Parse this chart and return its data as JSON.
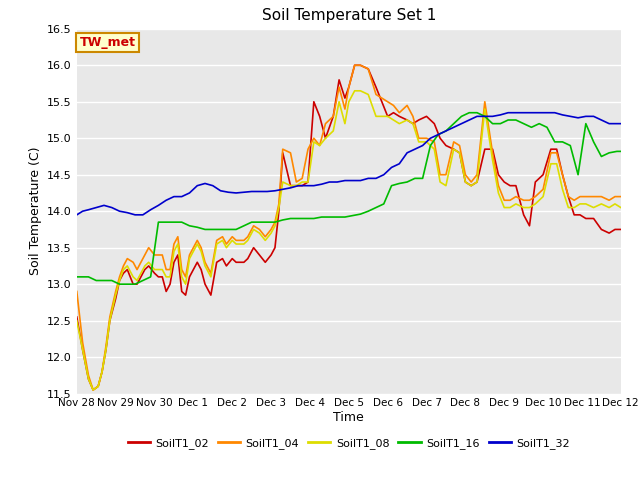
{
  "title": "Soil Temperature Set 1",
  "xlabel": "Time",
  "ylabel": "Soil Temperature (C)",
  "ylim": [
    11.5,
    16.5
  ],
  "fig_bg_color": "#ffffff",
  "plot_bg_color": "#e8e8e8",
  "grid_color": "#ffffff",
  "annotation_text": "TW_met",
  "annotation_bg": "#ffffcc",
  "annotation_border": "#cc8800",
  "annotation_text_color": "#cc0000",
  "series": {
    "SoilT1_02": {
      "color": "#cc0000",
      "x": [
        0,
        0.15,
        0.3,
        0.42,
        0.55,
        0.65,
        0.75,
        0.85,
        1.0,
        1.1,
        1.2,
        1.3,
        1.45,
        1.55,
        1.65,
        1.75,
        1.85,
        2.0,
        2.1,
        2.2,
        2.3,
        2.4,
        2.5,
        2.6,
        2.7,
        2.8,
        2.9,
        3.0,
        3.1,
        3.2,
        3.3,
        3.45,
        3.6,
        3.75,
        3.85,
        4.0,
        4.1,
        4.2,
        4.3,
        4.4,
        4.55,
        4.7,
        4.85,
        5.0,
        5.1,
        5.2,
        5.3,
        5.5,
        5.65,
        5.8,
        5.95,
        6.1,
        6.25,
        6.4,
        6.6,
        6.75,
        6.9,
        7.0,
        7.15,
        7.3,
        7.5,
        7.7,
        7.85,
        8.0,
        8.15,
        8.3,
        8.5,
        8.65,
        8.8,
        9.0,
        9.2,
        9.35,
        9.5,
        9.7,
        9.85,
        10.0,
        10.15,
        10.3,
        10.5,
        10.7,
        10.85,
        11.0,
        11.15,
        11.3,
        11.5,
        11.65,
        11.8,
        12.0,
        12.2,
        12.35,
        12.5,
        12.65,
        12.8,
        12.95,
        13.1,
        13.3,
        13.5,
        13.7,
        13.85,
        14.0
      ],
      "y": [
        12.55,
        12.1,
        11.7,
        11.55,
        11.6,
        11.8,
        12.1,
        12.5,
        12.8,
        13.05,
        13.15,
        13.2,
        13.0,
        13.0,
        13.1,
        13.2,
        13.25,
        13.15,
        13.1,
        13.1,
        12.9,
        13.0,
        13.3,
        13.4,
        12.9,
        12.85,
        13.1,
        13.2,
        13.3,
        13.2,
        13.0,
        12.85,
        13.3,
        13.35,
        13.25,
        13.35,
        13.3,
        13.3,
        13.3,
        13.35,
        13.5,
        13.4,
        13.3,
        13.4,
        13.5,
        14.0,
        14.8,
        14.35,
        14.35,
        14.35,
        14.4,
        15.5,
        15.3,
        15.0,
        15.3,
        15.8,
        15.55,
        15.7,
        16.0,
        16.0,
        15.95,
        15.7,
        15.5,
        15.3,
        15.35,
        15.3,
        15.25,
        15.2,
        15.25,
        15.3,
        15.2,
        15.0,
        14.9,
        14.85,
        14.8,
        14.4,
        14.35,
        14.4,
        14.85,
        14.85,
        14.5,
        14.4,
        14.35,
        14.35,
        13.95,
        13.8,
        14.4,
        14.5,
        14.85,
        14.85,
        14.5,
        14.2,
        13.95,
        13.95,
        13.9,
        13.9,
        13.75,
        13.7,
        13.75,
        13.75
      ]
    },
    "SoilT1_04": {
      "color": "#ff8800",
      "x": [
        0,
        0.15,
        0.3,
        0.42,
        0.55,
        0.65,
        0.75,
        0.85,
        1.0,
        1.1,
        1.2,
        1.3,
        1.45,
        1.55,
        1.65,
        1.75,
        1.85,
        2.0,
        2.1,
        2.2,
        2.3,
        2.4,
        2.5,
        2.6,
        2.7,
        2.8,
        2.9,
        3.0,
        3.1,
        3.2,
        3.3,
        3.45,
        3.6,
        3.75,
        3.85,
        4.0,
        4.1,
        4.2,
        4.3,
        4.4,
        4.55,
        4.7,
        4.85,
        5.0,
        5.1,
        5.2,
        5.3,
        5.5,
        5.65,
        5.8,
        5.95,
        6.1,
        6.25,
        6.4,
        6.6,
        6.75,
        6.9,
        7.0,
        7.15,
        7.3,
        7.5,
        7.7,
        7.85,
        8.0,
        8.15,
        8.3,
        8.5,
        8.65,
        8.8,
        9.0,
        9.2,
        9.35,
        9.5,
        9.7,
        9.85,
        10.0,
        10.15,
        10.3,
        10.5,
        10.7,
        10.85,
        11.0,
        11.15,
        11.3,
        11.5,
        11.65,
        11.8,
        12.0,
        12.2,
        12.35,
        12.5,
        12.65,
        12.8,
        12.95,
        13.1,
        13.3,
        13.5,
        13.7,
        13.85,
        14.0
      ],
      "y": [
        12.9,
        12.2,
        11.75,
        11.55,
        11.6,
        11.8,
        12.15,
        12.55,
        12.9,
        13.1,
        13.25,
        13.35,
        13.3,
        13.2,
        13.3,
        13.4,
        13.5,
        13.4,
        13.4,
        13.4,
        13.2,
        13.2,
        13.55,
        13.65,
        13.2,
        13.1,
        13.4,
        13.5,
        13.6,
        13.5,
        13.3,
        13.15,
        13.6,
        13.65,
        13.55,
        13.65,
        13.6,
        13.6,
        13.6,
        13.65,
        13.8,
        13.75,
        13.65,
        13.75,
        13.85,
        14.1,
        14.85,
        14.8,
        14.4,
        14.45,
        14.85,
        15.0,
        14.9,
        15.2,
        15.3,
        15.7,
        15.4,
        15.7,
        16.0,
        16.0,
        15.95,
        15.6,
        15.55,
        15.5,
        15.45,
        15.35,
        15.45,
        15.3,
        15.0,
        15.0,
        14.95,
        14.5,
        14.5,
        14.95,
        14.9,
        14.5,
        14.4,
        14.5,
        15.5,
        14.8,
        14.35,
        14.15,
        14.15,
        14.2,
        14.15,
        14.15,
        14.2,
        14.3,
        14.8,
        14.8,
        14.5,
        14.2,
        14.15,
        14.2,
        14.2,
        14.2,
        14.2,
        14.15,
        14.2,
        14.2
      ]
    },
    "SoilT1_08": {
      "color": "#dddd00",
      "x": [
        0,
        0.15,
        0.3,
        0.42,
        0.55,
        0.65,
        0.75,
        0.85,
        1.0,
        1.1,
        1.2,
        1.3,
        1.45,
        1.55,
        1.65,
        1.75,
        1.85,
        2.0,
        2.1,
        2.2,
        2.3,
        2.4,
        2.5,
        2.6,
        2.7,
        2.8,
        2.9,
        3.0,
        3.1,
        3.2,
        3.3,
        3.45,
        3.6,
        3.75,
        3.85,
        4.0,
        4.1,
        4.2,
        4.3,
        4.4,
        4.55,
        4.7,
        4.85,
        5.0,
        5.1,
        5.2,
        5.3,
        5.5,
        5.65,
        5.8,
        5.95,
        6.1,
        6.25,
        6.4,
        6.6,
        6.75,
        6.9,
        7.0,
        7.15,
        7.3,
        7.5,
        7.7,
        7.85,
        8.0,
        8.15,
        8.3,
        8.5,
        8.65,
        8.8,
        9.0,
        9.2,
        9.35,
        9.5,
        9.7,
        9.85,
        10.0,
        10.15,
        10.3,
        10.5,
        10.7,
        10.85,
        11.0,
        11.15,
        11.3,
        11.5,
        11.65,
        11.8,
        12.0,
        12.2,
        12.35,
        12.5,
        12.65,
        12.8,
        12.95,
        13.1,
        13.3,
        13.5,
        13.7,
        13.85,
        14.0
      ],
      "y": [
        12.5,
        12.1,
        11.7,
        11.55,
        11.6,
        11.8,
        12.1,
        12.5,
        12.85,
        13.05,
        13.2,
        13.25,
        13.1,
        13.05,
        13.15,
        13.25,
        13.3,
        13.2,
        13.2,
        13.2,
        13.1,
        13.1,
        13.45,
        13.55,
        13.1,
        13.0,
        13.35,
        13.45,
        13.55,
        13.45,
        13.25,
        13.1,
        13.55,
        13.6,
        13.5,
        13.6,
        13.55,
        13.55,
        13.55,
        13.6,
        13.75,
        13.7,
        13.6,
        13.7,
        13.8,
        14.05,
        14.4,
        14.35,
        14.35,
        14.4,
        14.4,
        14.95,
        14.9,
        15.0,
        15.1,
        15.5,
        15.2,
        15.5,
        15.65,
        15.65,
        15.6,
        15.3,
        15.3,
        15.3,
        15.25,
        15.2,
        15.25,
        15.2,
        14.95,
        14.95,
        14.85,
        14.4,
        14.35,
        14.85,
        14.8,
        14.4,
        14.35,
        14.4,
        15.4,
        14.7,
        14.25,
        14.05,
        14.05,
        14.1,
        14.05,
        14.05,
        14.1,
        14.2,
        14.65,
        14.65,
        14.3,
        14.05,
        14.05,
        14.1,
        14.1,
        14.05,
        14.1,
        14.05,
        14.1,
        14.05
      ]
    },
    "SoilT1_16": {
      "color": "#00bb00",
      "x": [
        0,
        0.15,
        0.3,
        0.5,
        0.7,
        0.9,
        1.1,
        1.3,
        1.5,
        1.7,
        1.9,
        2.1,
        2.3,
        2.5,
        2.7,
        2.9,
        3.1,
        3.3,
        3.5,
        3.7,
        3.9,
        4.1,
        4.3,
        4.5,
        4.7,
        4.9,
        5.1,
        5.3,
        5.5,
        5.7,
        5.9,
        6.1,
        6.3,
        6.5,
        6.7,
        6.9,
        7.1,
        7.3,
        7.5,
        7.7,
        7.9,
        8.1,
        8.3,
        8.5,
        8.7,
        8.9,
        9.1,
        9.3,
        9.5,
        9.7,
        9.9,
        10.1,
        10.3,
        10.5,
        10.7,
        10.9,
        11.1,
        11.3,
        11.5,
        11.7,
        11.9,
        12.1,
        12.3,
        12.5,
        12.7,
        12.9,
        13.1,
        13.3,
        13.5,
        13.7,
        13.9,
        14.0
      ],
      "y": [
        13.1,
        13.1,
        13.1,
        13.05,
        13.05,
        13.05,
        13.0,
        13.0,
        13.0,
        13.05,
        13.1,
        13.85,
        13.85,
        13.85,
        13.85,
        13.8,
        13.78,
        13.75,
        13.75,
        13.75,
        13.75,
        13.75,
        13.8,
        13.85,
        13.85,
        13.85,
        13.85,
        13.88,
        13.9,
        13.9,
        13.9,
        13.9,
        13.92,
        13.92,
        13.92,
        13.92,
        13.94,
        13.96,
        14.0,
        14.05,
        14.1,
        14.35,
        14.38,
        14.4,
        14.45,
        14.45,
        14.9,
        15.05,
        15.1,
        15.2,
        15.3,
        15.35,
        15.35,
        15.3,
        15.2,
        15.2,
        15.25,
        15.25,
        15.2,
        15.15,
        15.2,
        15.15,
        14.95,
        14.95,
        14.9,
        14.5,
        15.2,
        14.95,
        14.75,
        14.8,
        14.82,
        14.82
      ]
    },
    "SoilT1_32": {
      "color": "#0000cc",
      "x": [
        0,
        0.15,
        0.3,
        0.5,
        0.7,
        0.9,
        1.1,
        1.3,
        1.5,
        1.7,
        1.9,
        2.1,
        2.3,
        2.5,
        2.7,
        2.9,
        3.1,
        3.3,
        3.5,
        3.7,
        3.9,
        4.1,
        4.3,
        4.5,
        4.7,
        4.9,
        5.1,
        5.3,
        5.5,
        5.7,
        5.9,
        6.1,
        6.3,
        6.5,
        6.7,
        6.9,
        7.1,
        7.3,
        7.5,
        7.7,
        7.9,
        8.1,
        8.3,
        8.5,
        8.7,
        8.9,
        9.1,
        9.3,
        9.5,
        9.7,
        9.9,
        10.1,
        10.3,
        10.5,
        10.7,
        10.9,
        11.1,
        11.3,
        11.5,
        11.7,
        11.9,
        12.1,
        12.3,
        12.5,
        12.7,
        12.9,
        13.1,
        13.3,
        13.5,
        13.7,
        13.9,
        14.0
      ],
      "y": [
        13.95,
        14.0,
        14.02,
        14.05,
        14.08,
        14.05,
        14.0,
        13.98,
        13.95,
        13.95,
        14.02,
        14.08,
        14.15,
        14.2,
        14.2,
        14.25,
        14.35,
        14.38,
        14.35,
        14.28,
        14.26,
        14.25,
        14.26,
        14.27,
        14.27,
        14.27,
        14.28,
        14.3,
        14.32,
        14.35,
        14.35,
        14.35,
        14.37,
        14.4,
        14.4,
        14.42,
        14.42,
        14.42,
        14.45,
        14.45,
        14.5,
        14.6,
        14.65,
        14.8,
        14.85,
        14.9,
        15.0,
        15.05,
        15.1,
        15.15,
        15.2,
        15.25,
        15.3,
        15.3,
        15.3,
        15.32,
        15.35,
        15.35,
        15.35,
        15.35,
        15.35,
        15.35,
        15.35,
        15.32,
        15.3,
        15.28,
        15.3,
        15.3,
        15.25,
        15.2,
        15.2,
        15.2
      ]
    }
  },
  "xtick_positions": [
    0,
    1,
    2,
    3,
    4,
    5,
    6,
    7,
    8,
    9,
    10,
    11,
    12,
    13,
    14
  ],
  "xtick_labels": [
    "Nov 28",
    "Nov 29",
    "Nov 30",
    "Dec 1",
    "Dec 2",
    "Dec 3",
    "Dec 4",
    "Dec 5",
    "Dec 6",
    "Dec 7",
    "Dec 8",
    "Dec 9",
    "Dec 10",
    "Dec 11",
    "Dec 12"
  ],
  "ytick_positions": [
    11.5,
    12.0,
    12.5,
    13.0,
    13.5,
    14.0,
    14.5,
    15.0,
    15.5,
    16.0,
    16.5
  ],
  "legend_entries": [
    "SoilT1_02",
    "SoilT1_04",
    "SoilT1_08",
    "SoilT1_16",
    "SoilT1_32"
  ],
  "legend_colors": [
    "#cc0000",
    "#ff8800",
    "#dddd00",
    "#00bb00",
    "#0000cc"
  ]
}
